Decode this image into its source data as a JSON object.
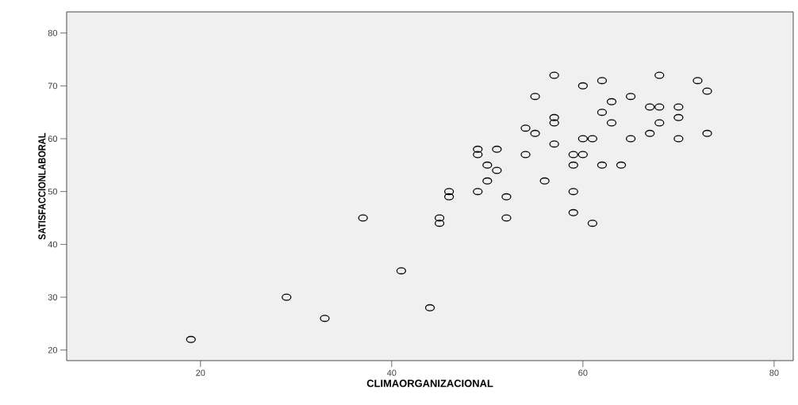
{
  "chart_data": {
    "type": "scatter",
    "xlabel": "CLIMAORGANIZACIONAL",
    "ylabel": "SATISFACCIONLABORAL",
    "x": [
      19,
      29,
      33,
      37,
      41,
      44,
      45,
      45,
      52,
      46,
      46,
      49,
      52,
      50,
      56,
      51,
      50,
      49,
      49,
      51,
      54,
      54,
      55,
      55,
      57,
      57,
      57,
      57,
      60,
      62,
      68,
      72,
      73,
      63,
      65,
      67,
      68,
      70,
      62,
      63,
      68,
      70,
      60,
      61,
      65,
      67,
      70,
      73,
      59,
      60,
      59,
      62,
      64,
      59,
      59,
      61
    ],
    "values": [
      22,
      30,
      26,
      45,
      35,
      28,
      45,
      44,
      45,
      50,
      49,
      50,
      49,
      52,
      52,
      54,
      55,
      58,
      57,
      58,
      57,
      62,
      61,
      68,
      72,
      64,
      63,
      59,
      70,
      71,
      72,
      71,
      69,
      67,
      68,
      66,
      66,
      66,
      65,
      63,
      63,
      64,
      60,
      60,
      60,
      61,
      60,
      61,
      57,
      57,
      55,
      55,
      55,
      50,
      46,
      44
    ],
    "color": "#000000",
    "marker": "circle",
    "grid": false,
    "xlim": [
      6,
      82
    ],
    "ylim": [
      18,
      84
    ],
    "xticks": [
      20,
      40,
      60,
      80
    ],
    "yticks": [
      20,
      30,
      40,
      50,
      60,
      70,
      80
    ]
  }
}
